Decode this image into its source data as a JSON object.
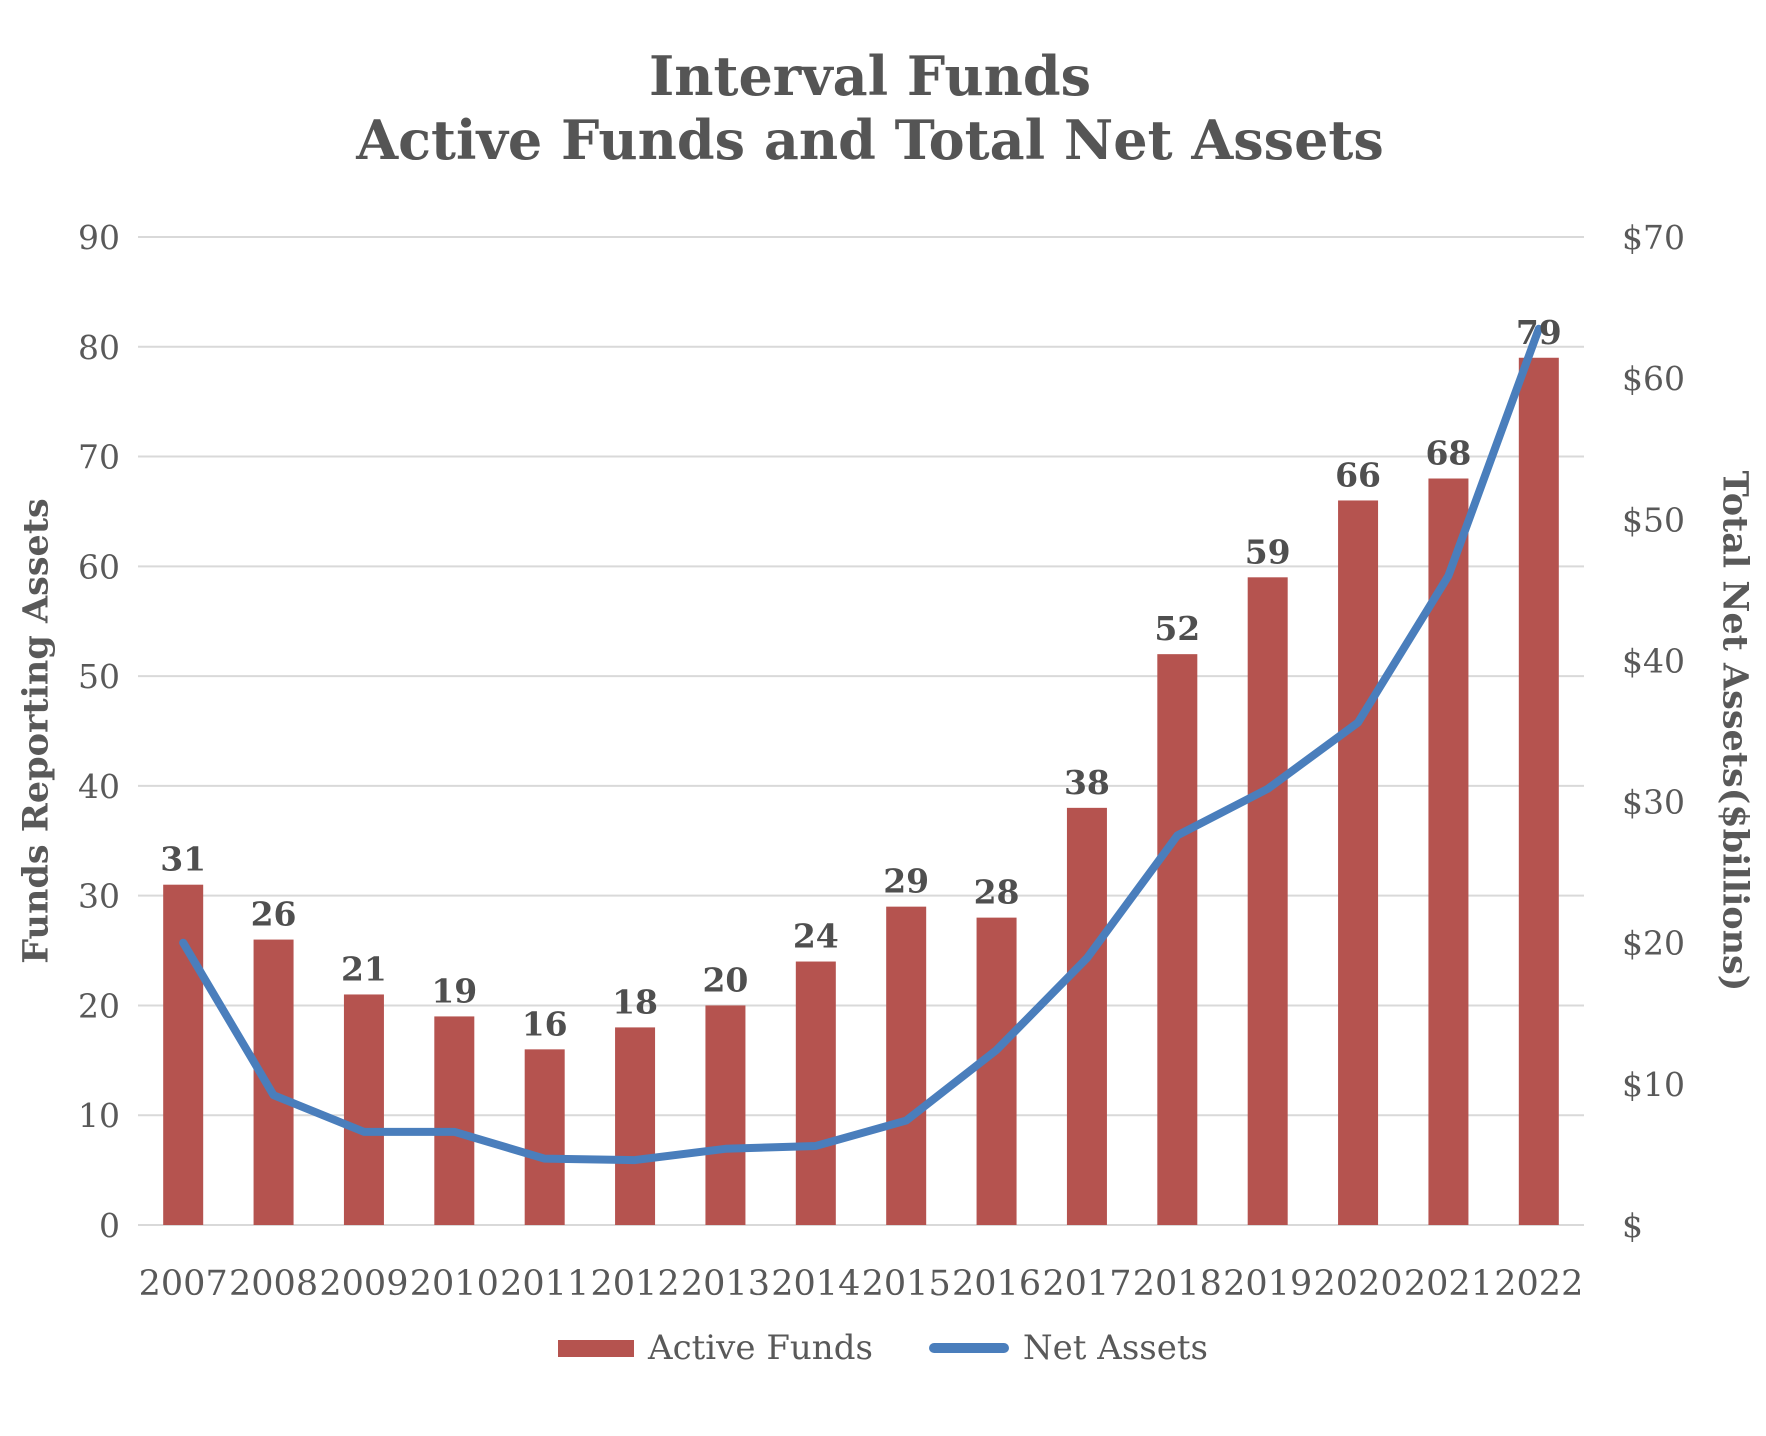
{
  "chart_data": {
    "type": "bar",
    "subtype": "combo-bar-line-dual-axis",
    "title_line1": "Interval Funds",
    "title_line2": "Active Funds and Total Net Assets",
    "categories": [
      "2007",
      "2008",
      "2009",
      "2010",
      "2011",
      "2012",
      "2013",
      "2014",
      "2015",
      "2016",
      "2017",
      "2018",
      "2019",
      "2020",
      "2021",
      "2022"
    ],
    "series": [
      {
        "name": "Active Funds",
        "type": "bar",
        "axis": "left",
        "color": "#B5534F",
        "values": [
          31,
          26,
          21,
          19,
          16,
          18,
          20,
          24,
          29,
          28,
          38,
          52,
          59,
          66,
          68,
          79
        ],
        "data_labels_shown": true
      },
      {
        "name": "Net Assets",
        "type": "line",
        "axis": "right",
        "color": "#4A7EBC",
        "values_billions": [
          20,
          9.2,
          6.6,
          6.6,
          4.7,
          4.6,
          5.4,
          5.6,
          7.4,
          12.4,
          18.9,
          27.6,
          30.9,
          35.6,
          46,
          63.5
        ]
      }
    ],
    "left_axis": {
      "title": "Funds Reporting Assets",
      "min": 0,
      "max": 90,
      "step": 10,
      "tick_values": [
        0,
        10,
        20,
        30,
        40,
        50,
        60,
        70,
        80,
        90
      ],
      "tick_labels": [
        "0",
        "10",
        "20",
        "30",
        "40",
        "50",
        "60",
        "70",
        "80",
        "90"
      ]
    },
    "right_axis": {
      "title": "Total Net Assets($billions)",
      "min": 0,
      "max": 70,
      "step": 10,
      "tick_values": [
        0,
        10,
        20,
        30,
        40,
        50,
        60,
        70
      ],
      "tick_labels": [
        "$",
        "$10",
        "$20",
        "$30",
        "$40",
        "$50",
        "$60",
        "$70"
      ]
    },
    "grid": {
      "shown": true,
      "color": "#D9D9D9"
    },
    "legend": {
      "position": "bottom",
      "items": [
        {
          "label": "Active Funds",
          "marker": "bar",
          "color": "#B5534F"
        },
        {
          "label": "Net Assets",
          "marker": "line",
          "color": "#4A7EBC"
        }
      ]
    },
    "colors": {
      "title_text": "#555555",
      "axis_text": "#595959",
      "data_label_text": "#4F4F4F",
      "background": "#FFFFFF"
    }
  }
}
